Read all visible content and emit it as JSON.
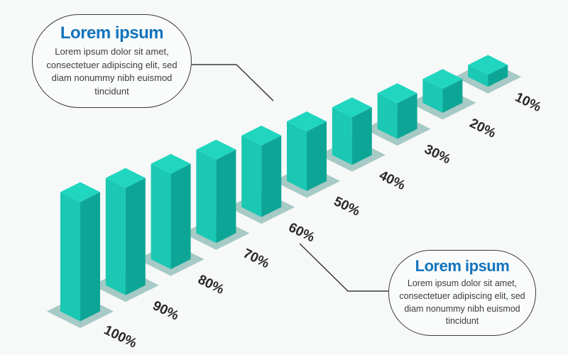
{
  "background_color": "#f7f8f8",
  "chart_data": {
    "type": "bar",
    "style": "isometric-3d",
    "title": "",
    "xlabel": "",
    "ylabel": "",
    "legend": false,
    "grid": false,
    "categories": [
      "100%",
      "90%",
      "80%",
      "70%",
      "60%",
      "50%",
      "40%",
      "30%",
      "20%",
      "10%"
    ],
    "values": [
      100,
      90,
      80,
      70,
      60,
      50,
      40,
      30,
      20,
      10
    ],
    "unit": "%",
    "value_range": [
      0,
      100
    ],
    "colors": {
      "bar_top": "#21d6bf",
      "bar_left": "#1ac8b3",
      "bar_right": "#0da696",
      "platform_shadow": "#a6cac5",
      "label": "#282828"
    }
  },
  "callouts": [
    {
      "position": "top-left",
      "title": "Lorem ipsum",
      "title_color": "#1274bd",
      "body": "Lorem ipsum dolor sit amet, consectetuer adipiscing elit, sed diam nonummy nibh euismod tincidunt"
    },
    {
      "position": "bottom-right",
      "title": "Lorem ipsum",
      "title_color": "#1274bd",
      "body": "Lorem ipsum dolor sit amet, consectetuer adipiscing elit, sed diam nonummy nibh euismod tincidunt"
    }
  ]
}
